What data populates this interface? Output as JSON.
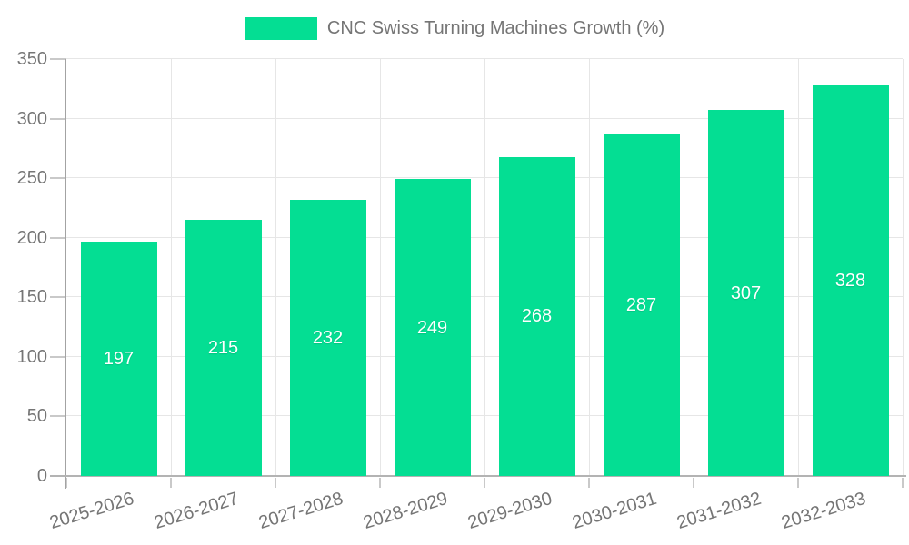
{
  "chart_data": {
    "type": "bar",
    "title": "CNC Swiss Turning Machines Growth (%)",
    "categories": [
      "2025-2026",
      "2026-2027",
      "2027-2028",
      "2028-2029",
      "2029-2030",
      "2030-2031",
      "2031-2032",
      "2032-2033"
    ],
    "series": [
      {
        "name": "CNC Swiss Turning Machines Growth (%)",
        "values": [
          197,
          215,
          232,
          249,
          268,
          287,
          307,
          328
        ]
      }
    ],
    "value_labels": [
      "197",
      "215",
      "232",
      "249",
      "268",
      "287",
      "307",
      "328"
    ],
    "xlabel": "",
    "ylabel": "",
    "ylim": [
      0,
      350
    ],
    "ytick_interval": 50,
    "ytick_labels": [
      "0",
      "50",
      "100",
      "150",
      "200",
      "250",
      "300",
      "350"
    ],
    "legend_position": "top",
    "grid": true,
    "x_label_rotation_deg": -17,
    "value_label_position": "center-inside",
    "colors": {
      "bar": "#04DE93",
      "legend_text": "#757575",
      "axis_label": "#757575",
      "value_label": "#ffffff",
      "gridline": "#e6e6e6",
      "y_axis_line": "#a3a3a3",
      "x_axis_line": "#b3b3b3",
      "tick": "#c9c9c9",
      "background": "#ffffff"
    }
  }
}
